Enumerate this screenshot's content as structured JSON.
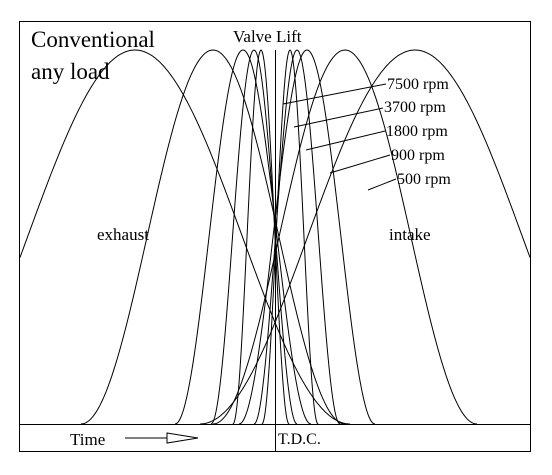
{
  "heading": {
    "line1": "Conventional",
    "line2": "any load"
  },
  "valve_lift_label": "Valve Lift",
  "exhaust_label": "exhaust",
  "intake_label": "intake",
  "time_label": "Time",
  "tdc_label": "T.D.C.",
  "rpm_labels": [
    "7500 rpm",
    "3700 rpm",
    "1800 rpm",
    "900 rpm",
    "500 rpm"
  ]
}
